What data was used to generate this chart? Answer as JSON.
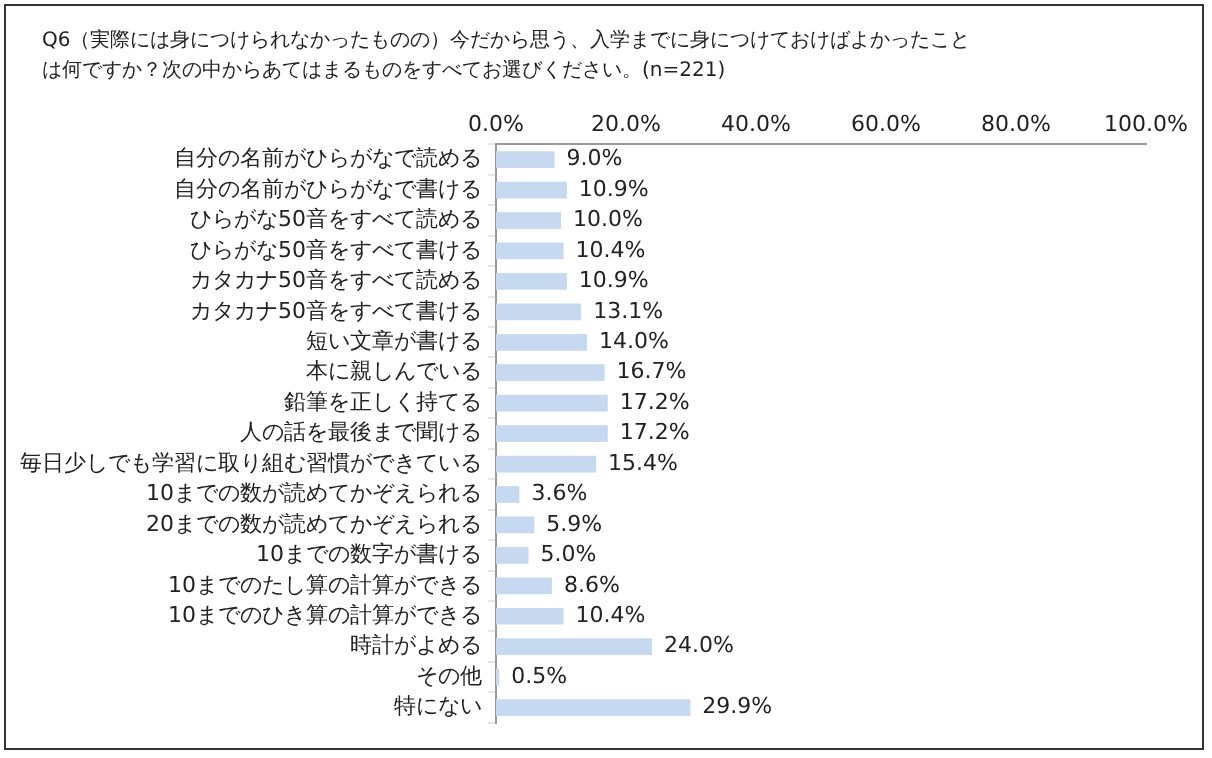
{
  "chart_data": {
    "type": "bar",
    "orientation": "horizontal",
    "title": "Q6（実際には身につけられなかったものの）今だから思う、入学までに身につけておけばよかったことは何ですか？次の中からあてはまるものをすべてお選びください。(n=221)",
    "categories": [
      "自分の名前がひらがなで読める",
      "自分の名前がひらがなで書ける",
      "ひらがな50音をすべて読める",
      "ひらがな50音をすべて書ける",
      "カタカナ50音をすべて読める",
      "カタカナ50音をすべて書ける",
      "短い文章が書ける",
      "本に親しんでいる",
      "鉛筆を正しく持てる",
      "人の話を最後まで聞ける",
      "毎日少しでも学習に取り組む習慣ができている",
      "10までの数が読めてかぞえられる",
      "20までの数が読めてかぞえられる",
      "10までの数字が書ける",
      "10までのたし算の計算ができる",
      "10までのひき算の計算ができる",
      "時計がよめる",
      "その他",
      "特にない"
    ],
    "values": [
      9.0,
      10.9,
      10.0,
      10.4,
      10.9,
      13.1,
      14.0,
      16.7,
      17.2,
      17.2,
      15.4,
      3.6,
      5.9,
      5.0,
      8.6,
      10.4,
      24.0,
      0.5,
      29.9
    ],
    "value_labels": [
      "9.0%",
      "10.9%",
      "10.0%",
      "10.4%",
      "10.9%",
      "13.1%",
      "14.0%",
      "16.7%",
      "17.2%",
      "17.2%",
      "15.4%",
      "3.6%",
      "5.9%",
      "5.0%",
      "8.6%",
      "10.4%",
      "24.0%",
      "0.5%",
      "29.9%"
    ],
    "color": "#c6d9f1",
    "xlim": [
      0,
      100
    ],
    "xticks": [
      {
        "value": 0,
        "label": "0.0%"
      },
      {
        "value": 20,
        "label": "20.0%"
      },
      {
        "value": 40,
        "label": "40.0%"
      },
      {
        "value": 60,
        "label": "60.0%"
      },
      {
        "value": 80,
        "label": "80.0%"
      },
      {
        "value": 100,
        "label": "100.0%"
      }
    ],
    "grid": false,
    "legend": false
  }
}
